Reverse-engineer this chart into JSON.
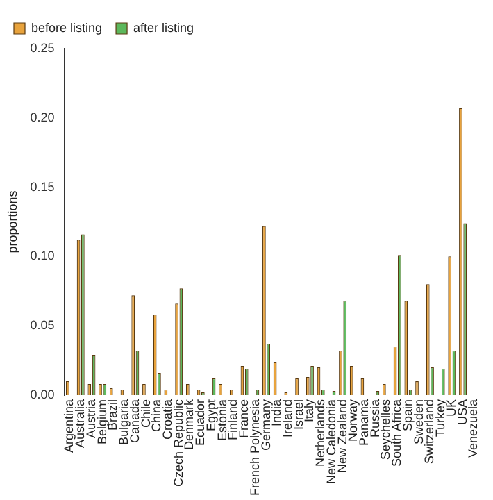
{
  "chart_data": {
    "type": "bar",
    "ylabel": "proportions",
    "categories": [
      "Argentina",
      "Australia",
      "Austria",
      "Belgium",
      "Brazil",
      "Bulgaria",
      "Canada",
      "Chile",
      "China",
      "Croatia",
      "Czech Republic",
      "Denmark",
      "Ecuador",
      "Egypt",
      "Estonia",
      "Finland",
      "France",
      "French Polynesia",
      "Germany",
      "India",
      "Ireland",
      "Israel",
      "Italy",
      "Netherlands",
      "New Caledonia",
      "New Zealand",
      "Norway",
      "Panama",
      "Russia",
      "Seychelles",
      "South Africa",
      "Spain",
      "Sweden",
      "Switzerland",
      "Turkey",
      "UK",
      "USA",
      "Venezuela"
    ],
    "series": [
      {
        "name": "before listing",
        "color": "#e8a33d",
        "values": [
          0.01,
          0.112,
          0.008,
          0.008,
          0.005,
          0.004,
          0.072,
          0.008,
          0.058,
          0.004,
          0.066,
          0.008,
          0.004,
          0,
          0.008,
          0.004,
          0.021,
          0,
          0.122,
          0.024,
          0.002,
          0.012,
          0.013,
          0.02,
          0,
          0.032,
          0.021,
          0.012,
          0,
          0.008,
          0.035,
          0.068,
          0.01,
          0.08,
          0,
          0.1,
          0.207,
          0
        ]
      },
      {
        "name": "after listing",
        "color": "#5cb85c",
        "values": [
          0,
          0.116,
          0.029,
          0.008,
          0,
          0,
          0.032,
          0,
          0.016,
          0,
          0.077,
          0,
          0.002,
          0.012,
          0,
          0,
          0.019,
          0.004,
          0.037,
          0,
          0,
          0,
          0.021,
          0.004,
          0.003,
          0.068,
          0,
          0,
          0.003,
          0,
          0.101,
          0.004,
          0,
          0.02,
          0.019,
          0.032,
          0.124,
          0
        ]
      }
    ],
    "ylim": [
      0,
      0.25
    ],
    "yticks": [
      {
        "value": 0,
        "label": "0.00"
      },
      {
        "value": 0.05,
        "label": "0.05"
      },
      {
        "value": 0.1,
        "label": "0.10"
      },
      {
        "value": 0.15,
        "label": "0.15"
      },
      {
        "value": 0.2,
        "label": "0.20"
      },
      {
        "value": 0.25,
        "label": "0.25"
      }
    ],
    "grid": false,
    "legend": "top left"
  }
}
